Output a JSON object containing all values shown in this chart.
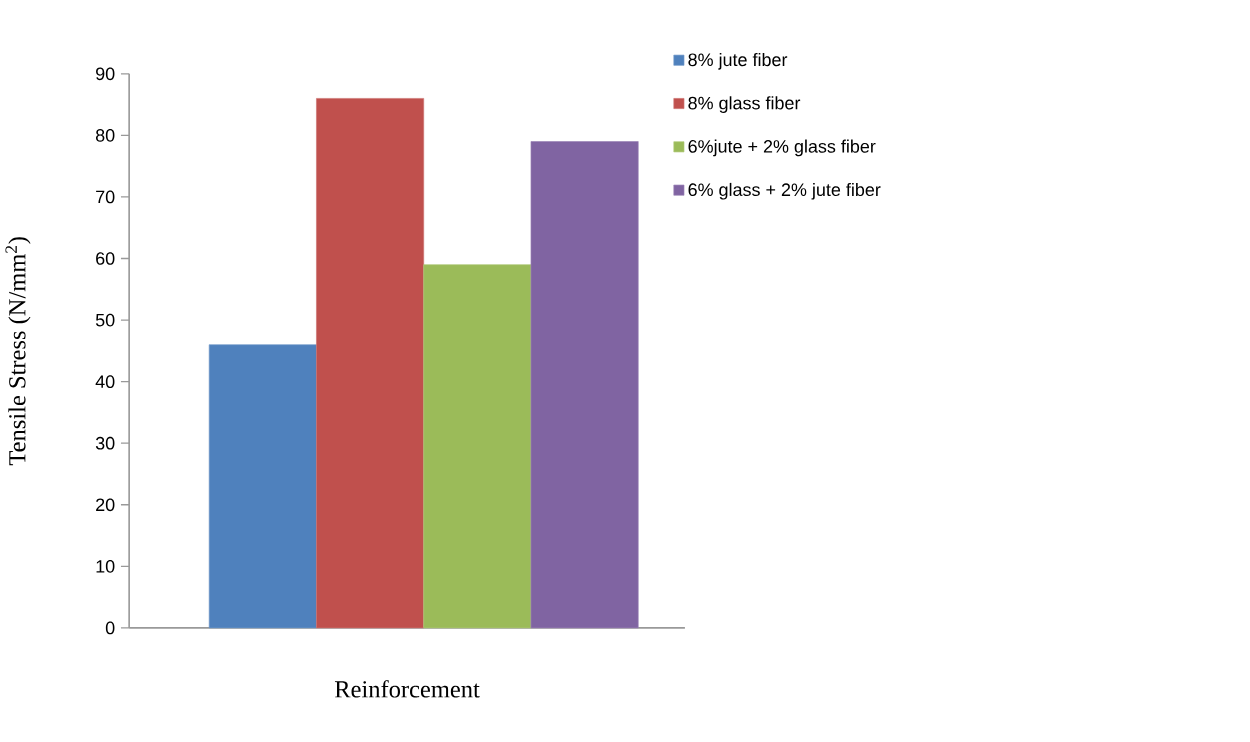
{
  "chart_data": {
    "type": "bar",
    "categories": [
      null
    ],
    "xlabel": "Reinforcement",
    "ylabel": "Tensile Stress (N/mm$^{2}$)",
    "series": [
      {
        "name": "8% jute fiber",
        "color": "#4f81bd",
        "values": [
          46
        ]
      },
      {
        "name": "8% glass fiber",
        "color": "#c0504d",
        "values": [
          86
        ]
      },
      {
        "name": "6%jute + 2% glass fiber",
        "color": "#9bbb59",
        "values": [
          59
        ]
      },
      {
        "name": "6% glass + 2% jute fiber",
        "color": "#8064a2",
        "values": [
          79
        ]
      }
    ],
    "ylim": [
      0,
      90
    ],
    "yticks": [
      0,
      10,
      20,
      30,
      40,
      50,
      60,
      70,
      80,
      90
    ],
    "legend": "top right"
  }
}
